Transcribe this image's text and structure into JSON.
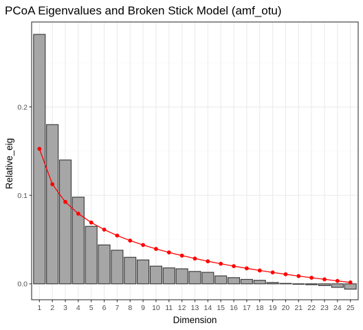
{
  "chart_data": {
    "type": "bar",
    "title": "PCoA Eigenvalues and Broken Stick Model (amf_otu)",
    "xlabel": "Dimension",
    "ylabel": "Relative_eig",
    "categories": [
      "1",
      "2",
      "3",
      "4",
      "5",
      "6",
      "7",
      "8",
      "9",
      "10",
      "11",
      "12",
      "13",
      "14",
      "15",
      "16",
      "17",
      "18",
      "19",
      "20",
      "21",
      "22",
      "23",
      "24",
      "25"
    ],
    "ylim": [
      -0.018,
      0.296
    ],
    "yticks": [
      0.0,
      0.1,
      0.2
    ],
    "ytick_labels": [
      "0.0",
      "0.1",
      "0.2"
    ],
    "grid": true,
    "series": [
      {
        "kind": "bar",
        "values": [
          0.282,
          0.18,
          0.14,
          0.098,
          0.065,
          0.044,
          0.038,
          0.03,
          0.027,
          0.02,
          0.018,
          0.017,
          0.014,
          0.013,
          0.009,
          0.007,
          0.005,
          0.004,
          0.0015,
          0.0005,
          -0.0005,
          -0.001,
          -0.002,
          -0.004,
          -0.006
        ]
      },
      {
        "kind": "line",
        "values": [
          0.1526,
          0.1126,
          0.0926,
          0.0793,
          0.0693,
          0.0613,
          0.0546,
          0.0489,
          0.0439,
          0.0395,
          0.0355,
          0.0319,
          0.0286,
          0.0255,
          0.0227,
          0.02,
          0.0175,
          0.0151,
          0.0129,
          0.0108,
          0.0088,
          0.0069,
          0.0051,
          0.0033,
          0.0016
        ]
      }
    ]
  },
  "colors": {
    "panel_background": "#ffffff",
    "panel_border": "#333333",
    "grid_major": "#ebebeb",
    "grid_minor": "#f5f5f5",
    "bar_fill": "#a6a6a6",
    "bar_stroke": "#333333",
    "line": "#ff0000",
    "tick_text": "#4d4d4d"
  }
}
